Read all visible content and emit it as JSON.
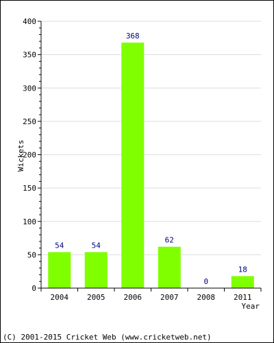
{
  "chart_data": {
    "type": "bar",
    "categories": [
      "2004",
      "2005",
      "2006",
      "2007",
      "2008",
      "2011"
    ],
    "values": [
      54,
      54,
      368,
      62,
      0,
      18
    ],
    "data_labels": [
      "54",
      "54",
      "368",
      "62",
      "0",
      "18"
    ],
    "title": "",
    "xlabel": "Year",
    "ylabel": "Wickets",
    "ylim": [
      0,
      400
    ],
    "yticks": [
      "0",
      "50",
      "100",
      "150",
      "200",
      "250",
      "300",
      "350",
      "400"
    ],
    "grid": true,
    "legend": "none"
  },
  "colors": {
    "bar": "#80ff00",
    "grid": "#dddddd",
    "axis": "#000000",
    "data_label": "#000080"
  },
  "footer": {
    "copyright": "(C) 2001-2015 Cricket Web (www.cricketweb.net)"
  }
}
